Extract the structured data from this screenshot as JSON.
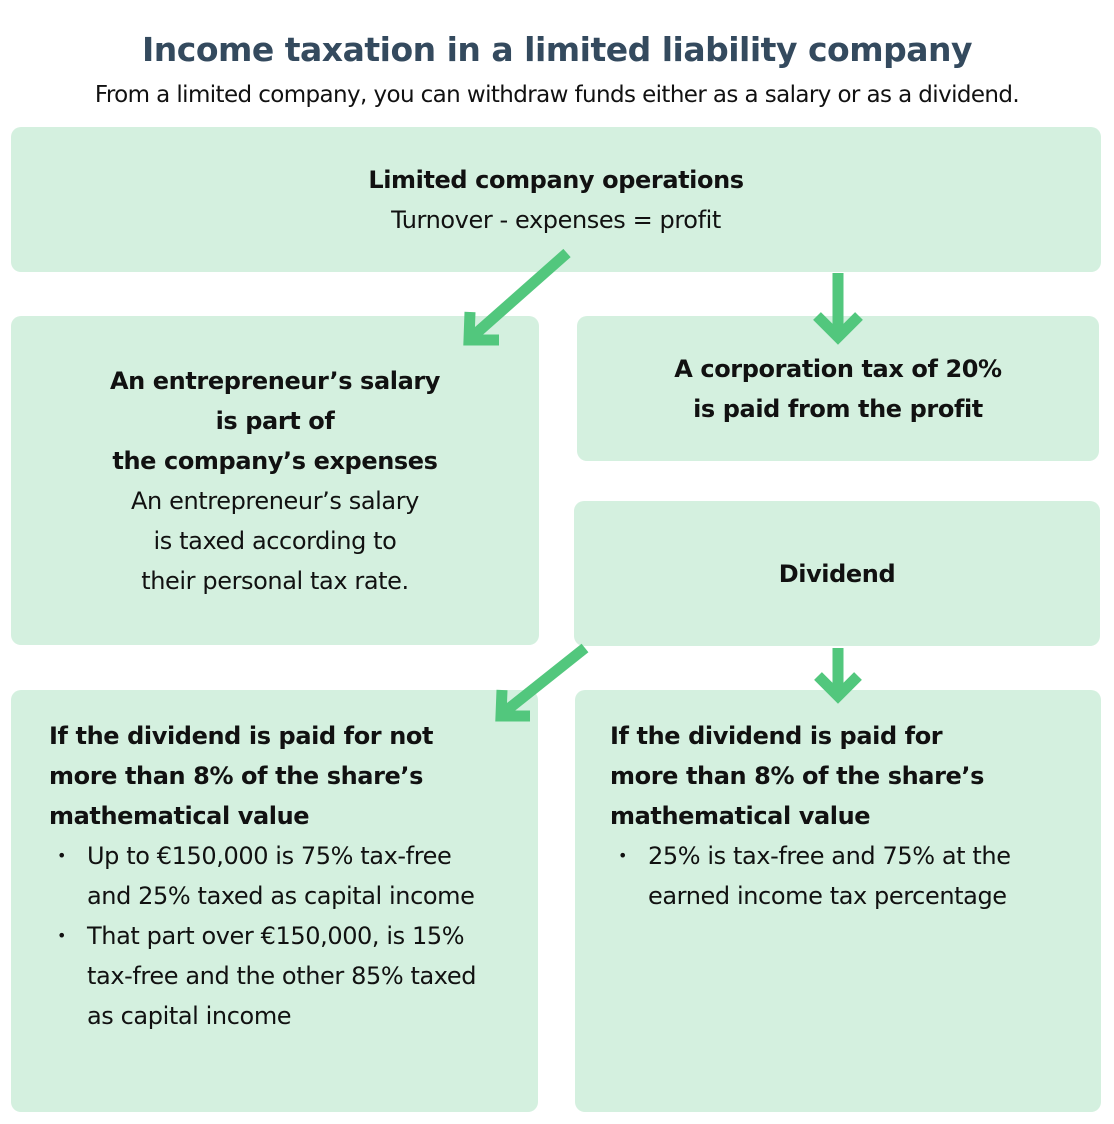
{
  "title": "Income taxation in a limited liability company",
  "subtitle": "From a limited company, you can withdraw funds either as a salary or as a dividend.",
  "colors": {
    "box": "#d4f0df",
    "arrow": "#52c77d",
    "title": "#344a5e"
  },
  "operations": {
    "heading": "Limited company operations",
    "text": "Turnover - expenses = profit"
  },
  "salary": {
    "heading": [
      "An entrepreneur’s salary",
      "is part of",
      "the company’s expenses"
    ],
    "text": [
      "An entrepreneur’s salary",
      "is taxed according to",
      "their personal tax rate."
    ]
  },
  "corporation_tax": {
    "heading": [
      "A corporation tax of 20%",
      "is paid from the profit"
    ]
  },
  "dividend": {
    "heading": "Dividend"
  },
  "dividend_low": {
    "heading": [
      "If the dividend is paid for not",
      "more than 8% of the share’s",
      "mathematical value"
    ],
    "bullets": [
      "Up to €150,000 is 75% tax-free and 25% taxed as capital income",
      "That part over €150,000, is 15% tax-free and the other 85% taxed as capital income"
    ]
  },
  "dividend_high": {
    "heading": [
      "If the dividend is paid for",
      "more than 8% of the share’s",
      "mathematical value"
    ],
    "bullets": [
      "25% is tax-free and 75% at the earned income tax percentage"
    ]
  }
}
